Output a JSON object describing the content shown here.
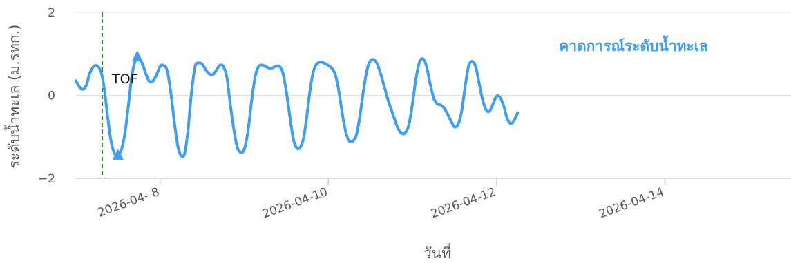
{
  "chart_data": {
    "type": "line",
    "title": "",
    "xlabel": "วันที่",
    "ylabel": "ระดับน้ำทะเล (ม.รทก.)",
    "x_range": [
      "2026-04-07T00:00",
      "2026-04-15T12:00"
    ],
    "ylim": [
      -2,
      2
    ],
    "y_ticks": [
      {
        "value": 2,
        "label": "2"
      },
      {
        "value": 0,
        "label": "0"
      },
      {
        "value": -2,
        "label": "−2"
      }
    ],
    "x_ticks": [
      {
        "value": "2026-04-08T00:00",
        "label": "2026-04- 8"
      },
      {
        "value": "2026-04-10T00:00",
        "label": "2026-04-10"
      },
      {
        "value": "2026-04-12T00:00",
        "label": "2026-04-12"
      },
      {
        "value": "2026-04-14T00:00",
        "label": "2026-04-14"
      }
    ],
    "grid": "horizontal",
    "colors": {
      "line": "#3d9ef2",
      "marker": "#3d9ef2",
      "vline": "#2e8b2e",
      "grid": "#dde3ea",
      "axis": "#c5cfdb"
    },
    "series": [
      {
        "name": "คาดการณ์ระดับน้ำทะเล",
        "points": [
          [
            "2026-04-07T00:00",
            0.35
          ],
          [
            "2026-04-07T01:00",
            0.2
          ],
          [
            "2026-04-07T02:00",
            0.15
          ],
          [
            "2026-04-07T03:00",
            0.25
          ],
          [
            "2026-04-07T04:00",
            0.55
          ],
          [
            "2026-04-07T05:30",
            0.72
          ],
          [
            "2026-04-07T07:00",
            0.6
          ],
          [
            "2026-04-07T08:00",
            0.2
          ],
          [
            "2026-04-07T09:00",
            -0.5
          ],
          [
            "2026-04-07T10:00",
            -1.1
          ],
          [
            "2026-04-07T11:00",
            -1.4
          ],
          [
            "2026-04-07T12:00",
            -1.45
          ],
          [
            "2026-04-07T13:00",
            -1.3
          ],
          [
            "2026-04-07T14:00",
            -0.9
          ],
          [
            "2026-04-07T15:00",
            -0.2
          ],
          [
            "2026-04-07T16:00",
            0.5
          ],
          [
            "2026-04-07T17:00",
            0.85
          ],
          [
            "2026-04-07T18:00",
            0.9
          ],
          [
            "2026-04-07T19:00",
            0.75
          ],
          [
            "2026-04-07T20:00",
            0.5
          ],
          [
            "2026-04-07T21:00",
            0.33
          ],
          [
            "2026-04-07T22:00",
            0.35
          ],
          [
            "2026-04-07T23:00",
            0.5
          ],
          [
            "2026-04-08T00:00",
            0.7
          ],
          [
            "2026-04-08T01:00",
            0.72
          ],
          [
            "2026-04-08T02:00",
            0.6
          ],
          [
            "2026-04-08T03:00",
            0.1
          ],
          [
            "2026-04-08T04:00",
            -0.6
          ],
          [
            "2026-04-08T05:00",
            -1.2
          ],
          [
            "2026-04-08T06:00",
            -1.45
          ],
          [
            "2026-04-08T07:00",
            -1.4
          ],
          [
            "2026-04-08T08:00",
            -0.8
          ],
          [
            "2026-04-08T09:00",
            0.1
          ],
          [
            "2026-04-08T10:00",
            0.7
          ],
          [
            "2026-04-08T11:00",
            0.78
          ],
          [
            "2026-04-08T12:00",
            0.75
          ],
          [
            "2026-04-08T13:00",
            0.62
          ],
          [
            "2026-04-08T14:00",
            0.52
          ],
          [
            "2026-04-08T15:00",
            0.5
          ],
          [
            "2026-04-08T16:00",
            0.6
          ],
          [
            "2026-04-08T17:00",
            0.72
          ],
          [
            "2026-04-08T18:00",
            0.7
          ],
          [
            "2026-04-08T19:00",
            0.45
          ],
          [
            "2026-04-08T20:00",
            -0.2
          ],
          [
            "2026-04-08T21:00",
            -0.8
          ],
          [
            "2026-04-08T22:00",
            -1.25
          ],
          [
            "2026-04-08T23:00",
            -1.38
          ],
          [
            "2026-04-09T00:00",
            -1.3
          ],
          [
            "2026-04-09T01:00",
            -0.9
          ],
          [
            "2026-04-09T02:00",
            -0.2
          ],
          [
            "2026-04-09T03:00",
            0.4
          ],
          [
            "2026-04-09T04:00",
            0.68
          ],
          [
            "2026-04-09T05:00",
            0.73
          ],
          [
            "2026-04-09T06:00",
            0.7
          ],
          [
            "2026-04-09T07:00",
            0.66
          ],
          [
            "2026-04-09T08:00",
            0.66
          ],
          [
            "2026-04-09T09:00",
            0.7
          ],
          [
            "2026-04-09T10:00",
            0.7
          ],
          [
            "2026-04-09T11:00",
            0.55
          ],
          [
            "2026-04-09T12:00",
            0.1
          ],
          [
            "2026-04-09T13:00",
            -0.5
          ],
          [
            "2026-04-09T14:00",
            -1.05
          ],
          [
            "2026-04-09T15:00",
            -1.27
          ],
          [
            "2026-04-09T16:00",
            -1.25
          ],
          [
            "2026-04-09T17:00",
            -1.0
          ],
          [
            "2026-04-09T18:00",
            -0.4
          ],
          [
            "2026-04-09T19:00",
            0.25
          ],
          [
            "2026-04-09T20:00",
            0.65
          ],
          [
            "2026-04-09T21:00",
            0.78
          ],
          [
            "2026-04-09T22:00",
            0.8
          ],
          [
            "2026-04-09T23:00",
            0.77
          ],
          [
            "2026-04-10T00:00",
            0.72
          ],
          [
            "2026-04-10T01:00",
            0.65
          ],
          [
            "2026-04-10T02:00",
            0.5
          ],
          [
            "2026-04-10T03:00",
            0.1
          ],
          [
            "2026-04-10T04:00",
            -0.45
          ],
          [
            "2026-04-10T05:00",
            -0.9
          ],
          [
            "2026-04-10T06:00",
            -1.1
          ],
          [
            "2026-04-10T07:00",
            -1.1
          ],
          [
            "2026-04-10T08:00",
            -0.95
          ],
          [
            "2026-04-10T09:00",
            -0.5
          ],
          [
            "2026-04-10T10:00",
            0.1
          ],
          [
            "2026-04-10T11:00",
            0.6
          ],
          [
            "2026-04-10T12:00",
            0.83
          ],
          [
            "2026-04-10T13:00",
            0.86
          ],
          [
            "2026-04-10T14:00",
            0.75
          ],
          [
            "2026-04-10T15:00",
            0.5
          ],
          [
            "2026-04-10T16:00",
            0.2
          ],
          [
            "2026-04-10T17:00",
            -0.1
          ],
          [
            "2026-04-10T18:00",
            -0.35
          ],
          [
            "2026-04-10T19:00",
            -0.6
          ],
          [
            "2026-04-10T20:00",
            -0.82
          ],
          [
            "2026-04-10T21:00",
            -0.92
          ],
          [
            "2026-04-10T22:00",
            -0.9
          ],
          [
            "2026-04-10T23:00",
            -0.7
          ],
          [
            "2026-04-11T00:00",
            -0.2
          ],
          [
            "2026-04-11T01:00",
            0.4
          ],
          [
            "2026-04-11T02:00",
            0.8
          ],
          [
            "2026-04-11T03:00",
            0.88
          ],
          [
            "2026-04-11T04:00",
            0.7
          ],
          [
            "2026-04-11T05:00",
            0.3
          ],
          [
            "2026-04-11T06:00",
            -0.05
          ],
          [
            "2026-04-11T07:00",
            -0.2
          ],
          [
            "2026-04-11T08:00",
            -0.23
          ],
          [
            "2026-04-11T09:00",
            -0.3
          ],
          [
            "2026-04-11T10:00",
            -0.45
          ],
          [
            "2026-04-11T11:00",
            -0.62
          ],
          [
            "2026-04-11T12:00",
            -0.76
          ],
          [
            "2026-04-11T13:00",
            -0.7
          ],
          [
            "2026-04-11T14:00",
            -0.4
          ],
          [
            "2026-04-11T15:00",
            0.2
          ],
          [
            "2026-04-11T16:00",
            0.7
          ],
          [
            "2026-04-11T17:00",
            0.82
          ],
          [
            "2026-04-11T18:00",
            0.7
          ],
          [
            "2026-04-11T19:00",
            0.3
          ],
          [
            "2026-04-11T20:00",
            -0.1
          ],
          [
            "2026-04-11T21:00",
            -0.35
          ],
          [
            "2026-04-11T22:00",
            -0.38
          ],
          [
            "2026-04-11T23:00",
            -0.2
          ],
          [
            "2026-04-12T00:00",
            -0.02
          ],
          [
            "2026-04-12T01:00",
            -0.05
          ],
          [
            "2026-04-12T02:00",
            -0.25
          ],
          [
            "2026-04-12T03:00",
            -0.55
          ],
          [
            "2026-04-12T04:00",
            -0.68
          ],
          [
            "2026-04-12T05:00",
            -0.6
          ],
          [
            "2026-04-12T06:00",
            -0.42
          ]
        ]
      }
    ],
    "vertical_line": {
      "x": "2026-04-07T07:30"
    },
    "annotations": [
      {
        "text": "TOF",
        "x": "2026-04-07T07:45",
        "y": 0.42
      }
    ],
    "markers": [
      {
        "x": "2026-04-07T12:00",
        "y": -1.45,
        "shape": "triangle"
      },
      {
        "x": "2026-04-07T17:30",
        "y": 0.92,
        "shape": "triangle"
      }
    ]
  }
}
